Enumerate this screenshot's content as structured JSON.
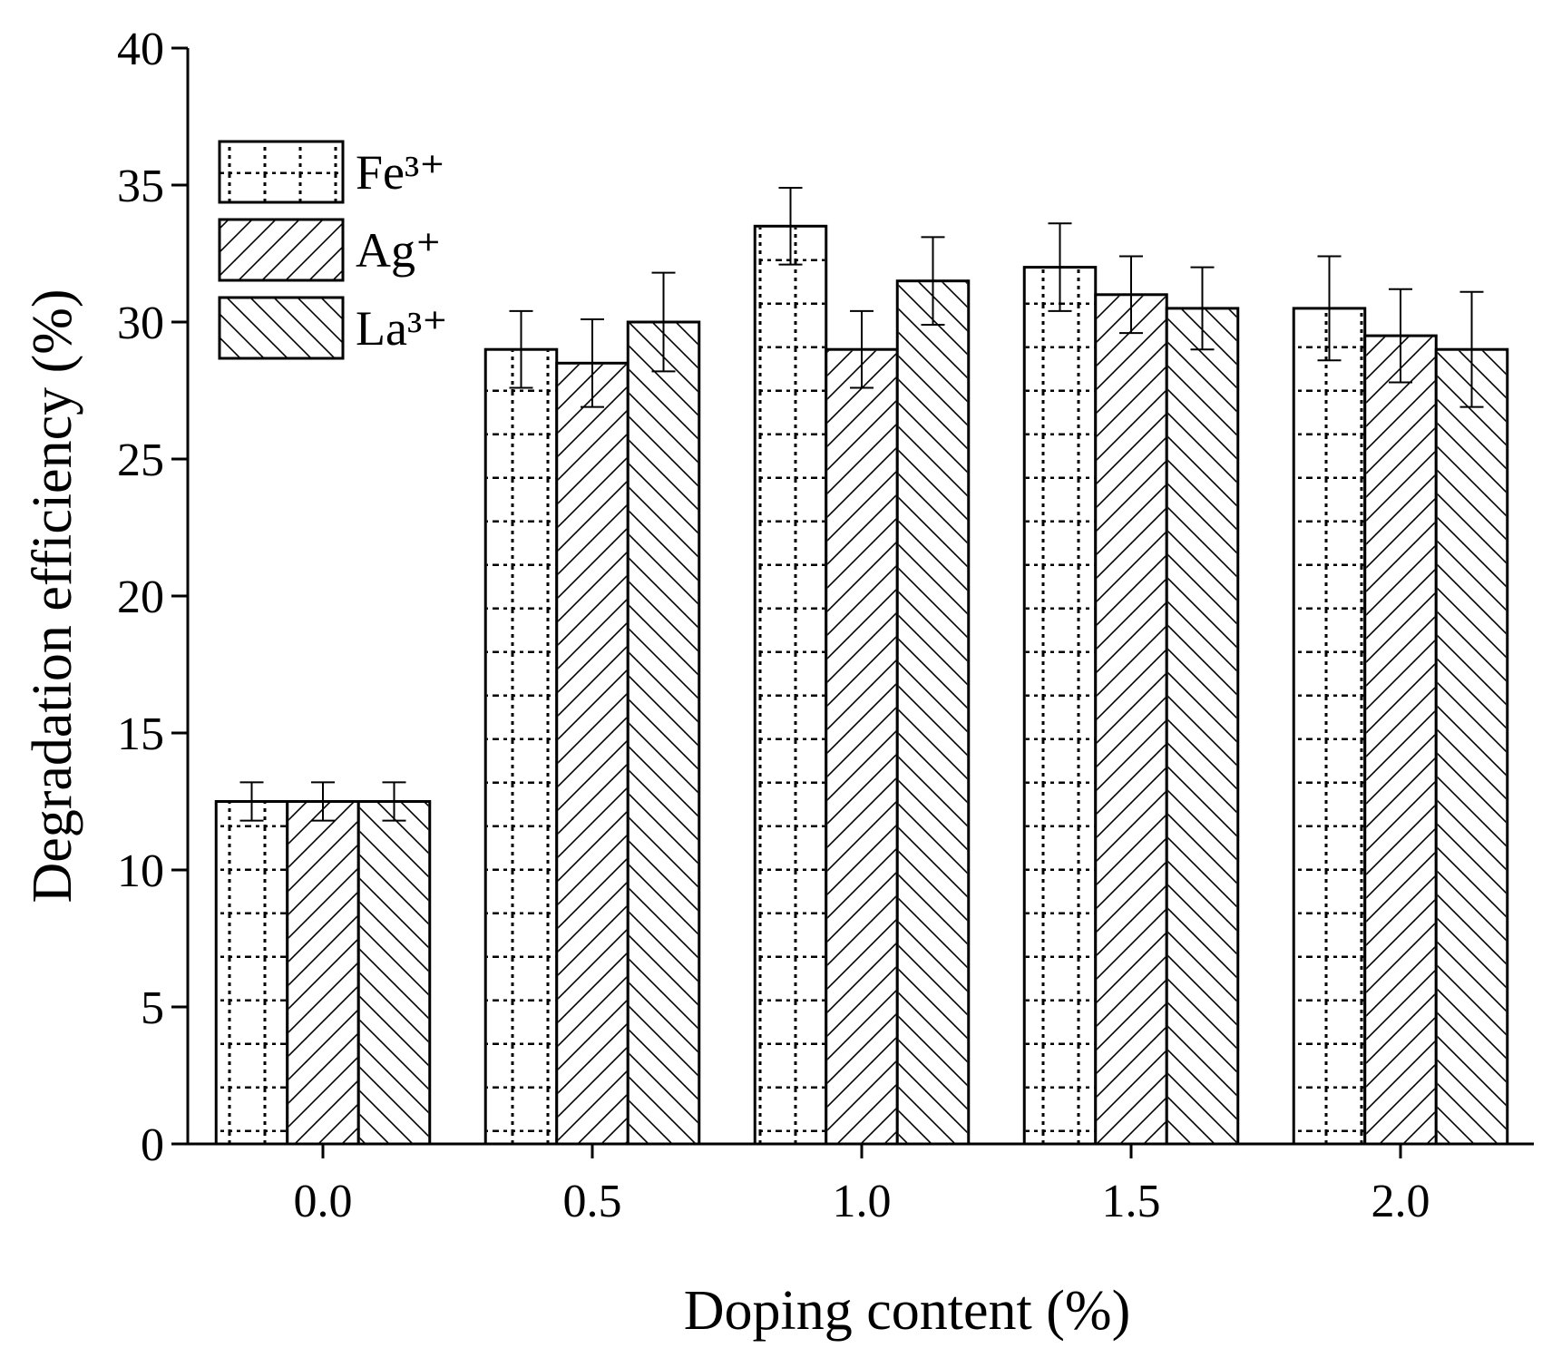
{
  "chart_data": {
    "type": "bar",
    "x_label": "Doping content (%)",
    "y_label": "Degradation efficiency (%)",
    "categories": [
      "0.0",
      "0.5",
      "1.0",
      "1.5",
      "2.0"
    ],
    "series": [
      {
        "name": "Fe³⁺",
        "color": "#000000",
        "pattern": "dots",
        "values": [
          12.5,
          29,
          33.5,
          32,
          30.5
        ],
        "errors": [
          0.7,
          1.4,
          1.4,
          1.6,
          1.9
        ]
      },
      {
        "name": "Ag⁺",
        "color": "#000000",
        "pattern": "slash",
        "values": [
          12.5,
          28.5,
          29,
          31,
          29.5
        ],
        "errors": [
          0.7,
          1.6,
          1.4,
          1.4,
          1.7
        ]
      },
      {
        "name": "La³⁺",
        "color": "#000000",
        "pattern": "backslash",
        "values": [
          12.5,
          30,
          31.5,
          30.5,
          29
        ],
        "errors": [
          0.7,
          1.8,
          1.6,
          1.5,
          2.1
        ]
      }
    ],
    "ylim": [
      0,
      40
    ],
    "yticks": [
      0,
      5,
      10,
      15,
      20,
      25,
      30,
      35,
      40
    ],
    "legend": "upper left"
  }
}
